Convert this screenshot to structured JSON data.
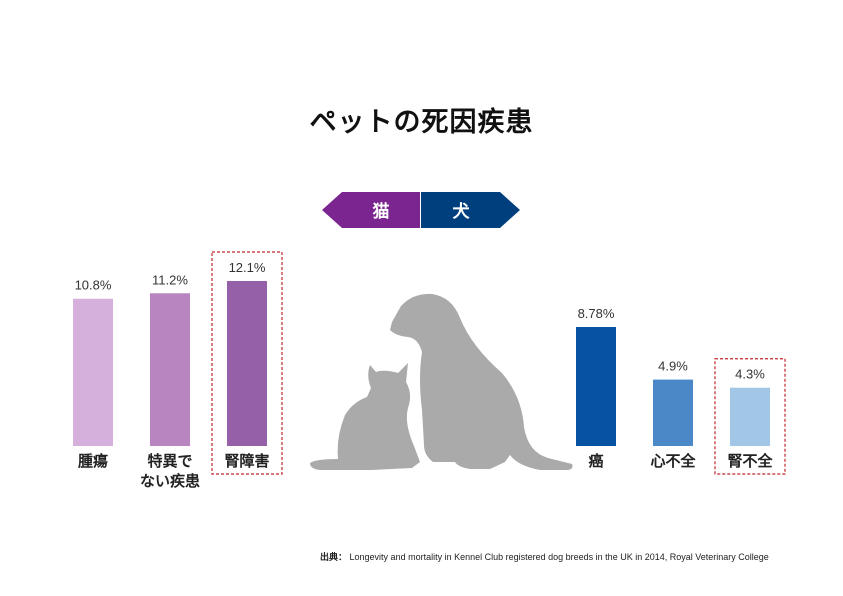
{
  "title": "ペットの死因疾患",
  "legend": {
    "cat_label": "猫",
    "dog_label": "犬",
    "colors": {
      "cat": "#7b2690",
      "dog": "#003f7d"
    }
  },
  "source": {
    "prefix": "出典：",
    "text": "Longevity and mortality in Kennel Club registered dog breeds in the UK in 2014, Royal Veterinary College"
  },
  "chart_data": [
    {
      "type": "bar",
      "series": [
        {
          "name": "猫",
          "values": [
            10.8,
            11.2,
            12.1
          ]
        }
      ],
      "categories": [
        [
          "腫瘍"
        ],
        [
          "特異で",
          "ない疾患"
        ],
        [
          "腎障害"
        ]
      ],
      "value_labels": [
        "10.8%",
        "11.2%",
        "12.1%"
      ],
      "colors": [
        "#d6b0dd",
        "#b885c1",
        "#9660a8"
      ],
      "highlighted": [
        false,
        false,
        true
      ],
      "ylim": [
        0,
        14
      ]
    },
    {
      "type": "bar",
      "series": [
        {
          "name": "犬",
          "values": [
            8.78,
            4.9,
            4.3
          ]
        }
      ],
      "categories": [
        [
          "癌"
        ],
        [
          "心不全"
        ],
        [
          "腎不全"
        ]
      ],
      "value_labels": [
        "8.78%",
        "4.9%",
        "4.3%"
      ],
      "colors": [
        "#0752a3",
        "#4a88c7",
        "#a2c7e6"
      ],
      "highlighted": [
        false,
        false,
        true
      ],
      "ylim": [
        0,
        10.5
      ]
    }
  ],
  "silhouette_color": "#aaaaaa",
  "highlight_color": "#c0272d"
}
